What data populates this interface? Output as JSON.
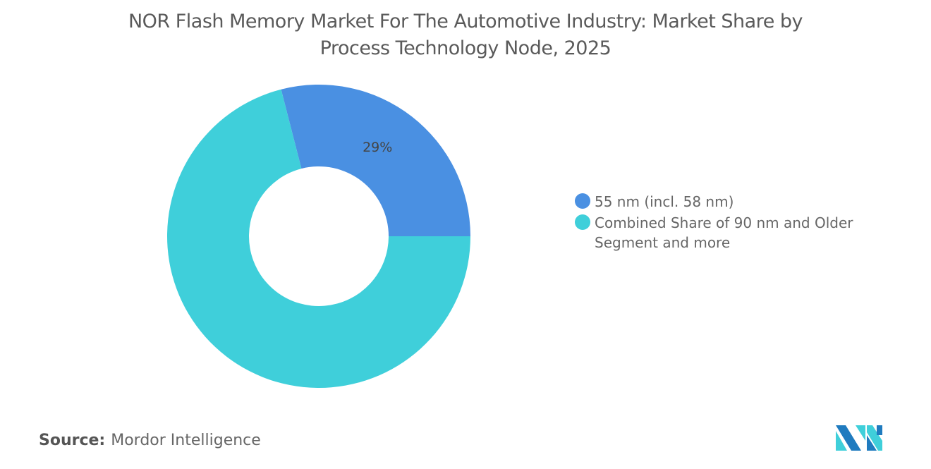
{
  "chart_data": {
    "type": "pie",
    "donut": true,
    "title": "NOR Flash Memory Market For The Automotive Industry: Market Share by Process Technology Node, 2025",
    "categories": [
      "55 nm (incl. 58 nm)",
      "Combined Share of 90 nm and Older Segment and more"
    ],
    "values": [
      29,
      71
    ],
    "data_labels": [
      "29%",
      ""
    ],
    "colors": [
      "#4a90e2",
      "#3fcfda"
    ],
    "legend_position": "right"
  },
  "source": {
    "label": "Source:",
    "value": "Mordor Intelligence"
  },
  "logo": {
    "name": "mordor-intelligence-logo",
    "colors": [
      "#1f7bbf",
      "#3fcfda"
    ]
  }
}
